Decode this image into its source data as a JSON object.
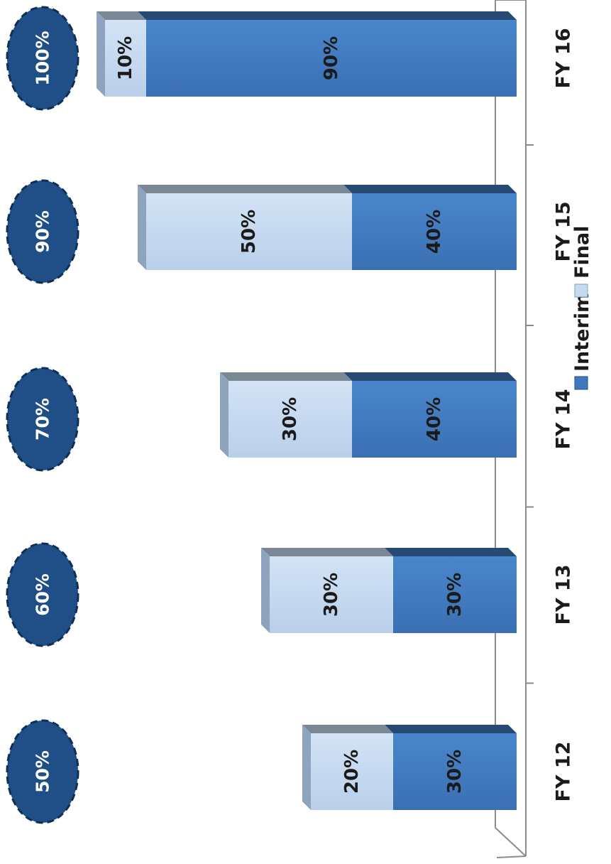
{
  "chart_data": {
    "type": "bar",
    "orientation": "horizontal-stacked-3d",
    "categories": [
      "FY 12",
      "FY 13",
      "FY 14",
      "FY 15",
      "FY 16"
    ],
    "series": [
      {
        "name": "Interim",
        "values": [
          30,
          30,
          40,
          40,
          90
        ],
        "labels": [
          "30%",
          "30%",
          "40%",
          "40%",
          "90%"
        ],
        "color": "#3f78bd"
      },
      {
        "name": "Final",
        "values": [
          20,
          30,
          30,
          50,
          10
        ],
        "labels": [
          "20%",
          "30%",
          "30%",
          "50%",
          "10%"
        ],
        "color": "#c5d9f0"
      }
    ],
    "totals": [
      "50%",
      "60%",
      "70%",
      "90%",
      "100%"
    ],
    "total_values": [
      50,
      60,
      70,
      90,
      100
    ],
    "total_badge_color": "#1f4f86",
    "xlim": [
      0,
      100
    ],
    "legend_position": "bottom",
    "grid": false
  }
}
